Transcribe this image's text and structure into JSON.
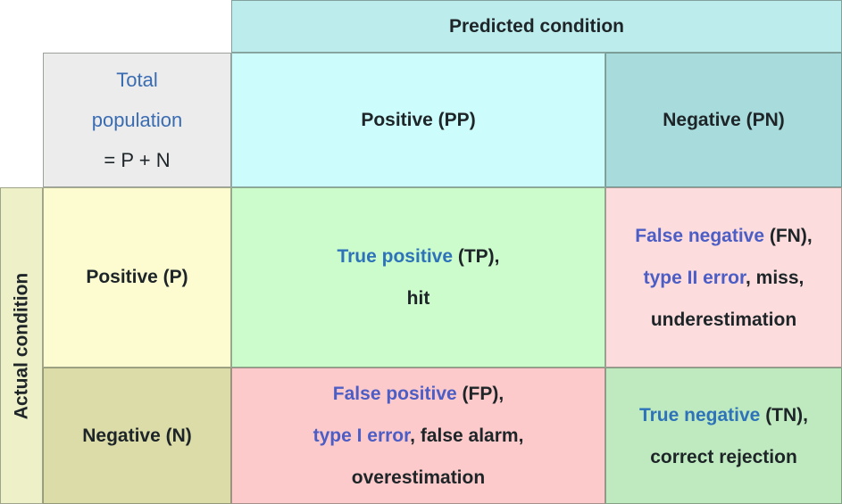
{
  "headers": {
    "predicted": "Predicted condition",
    "actual": "Actual condition"
  },
  "total_cell": {
    "line1": "Total",
    "line2": "population",
    "line3": "= P + N"
  },
  "predicted_cols": {
    "positive": "Positive (PP)",
    "negative": "Negative (PN)"
  },
  "actual_rows": {
    "positive": "Positive (P)",
    "negative": "Negative (N)"
  },
  "cells": {
    "tp": {
      "link": "True positive",
      "after_link": " (TP),",
      "line2": "hit"
    },
    "fn": {
      "link": "False negative",
      "after_link": " (FN),",
      "link2": "type II error",
      "after_link2": ", miss,",
      "line3": "underestimation"
    },
    "fp": {
      "link": "False positive",
      "after_link": " (FP),",
      "link2": "type I error",
      "after_link2": ", false alarm,",
      "line3": "overestimation"
    },
    "tn": {
      "link": "True negative",
      "after_link": " (TN),",
      "line2": "correct rejection"
    }
  },
  "colors": {
    "predicted_header_bg": "#bdecec",
    "pp_bg": "#cdfcfc",
    "pn_bg": "#a8dcdc",
    "total_bg": "#ececec",
    "actual_band_bg": "#eef0c8",
    "p_bg": "#fcfcd0",
    "n_bg": "#dbdca8",
    "tp_bg": "#ccfbcc",
    "fn_bg": "#fcdcdc",
    "fp_bg": "#fccaca",
    "tn_bg": "#bfeabf",
    "link_blue": "#2e73b9",
    "link_indigo": "#4c5ec5",
    "total_link_blue": "#3a6cb2",
    "text_dark": "#1e2528"
  }
}
